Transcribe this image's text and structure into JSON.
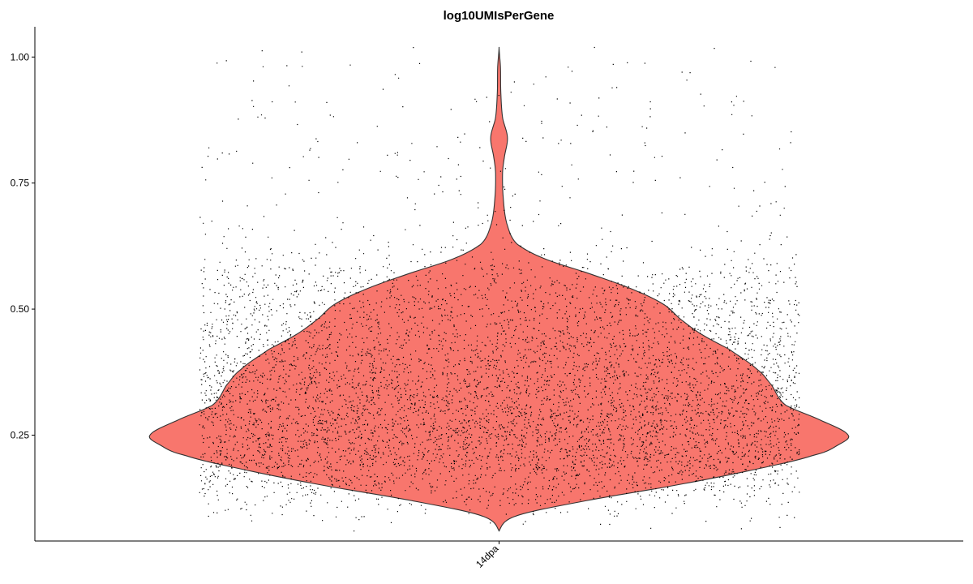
{
  "chart_data": {
    "type": "violin",
    "title": "log10UMIsPerGene",
    "xlabel": "",
    "ylabel": "",
    "categories": [
      "14dpa"
    ],
    "ylim": [
      0.04,
      1.06
    ],
    "yticks": [
      0.25,
      0.5,
      0.75,
      1.0
    ],
    "ytick_labels": [
      "0.25",
      "0.50",
      "0.75",
      "1.00"
    ],
    "series": [
      {
        "category": "14dpa",
        "fill_color": "#F8766D",
        "outline_color": "#333333",
        "point_color": "#000000",
        "n_points": 6500,
        "min": 0.06,
        "max": 1.02,
        "density_profile": [
          {
            "y": 0.06,
            "w": 0.0
          },
          {
            "y": 0.09,
            "w": 0.05
          },
          {
            "y": 0.12,
            "w": 0.25
          },
          {
            "y": 0.15,
            "w": 0.5
          },
          {
            "y": 0.18,
            "w": 0.72
          },
          {
            "y": 0.21,
            "w": 0.9
          },
          {
            "y": 0.23,
            "w": 0.97
          },
          {
            "y": 0.25,
            "w": 1.0
          },
          {
            "y": 0.28,
            "w": 0.92
          },
          {
            "y": 0.31,
            "w": 0.82
          },
          {
            "y": 0.35,
            "w": 0.78
          },
          {
            "y": 0.38,
            "w": 0.74
          },
          {
            "y": 0.42,
            "w": 0.66
          },
          {
            "y": 0.45,
            "w": 0.58
          },
          {
            "y": 0.48,
            "w": 0.52
          },
          {
            "y": 0.51,
            "w": 0.47
          },
          {
            "y": 0.54,
            "w": 0.38
          },
          {
            "y": 0.57,
            "w": 0.26
          },
          {
            "y": 0.6,
            "w": 0.13
          },
          {
            "y": 0.63,
            "w": 0.05
          },
          {
            "y": 0.67,
            "w": 0.022
          },
          {
            "y": 0.72,
            "w": 0.012
          },
          {
            "y": 0.77,
            "w": 0.01
          },
          {
            "y": 0.8,
            "w": 0.015
          },
          {
            "y": 0.84,
            "w": 0.024
          },
          {
            "y": 0.88,
            "w": 0.01
          },
          {
            "y": 0.93,
            "w": 0.005
          },
          {
            "y": 0.98,
            "w": 0.004
          },
          {
            "y": 1.02,
            "w": 0.0
          }
        ]
      }
    ],
    "grid": false,
    "legend": "none"
  }
}
